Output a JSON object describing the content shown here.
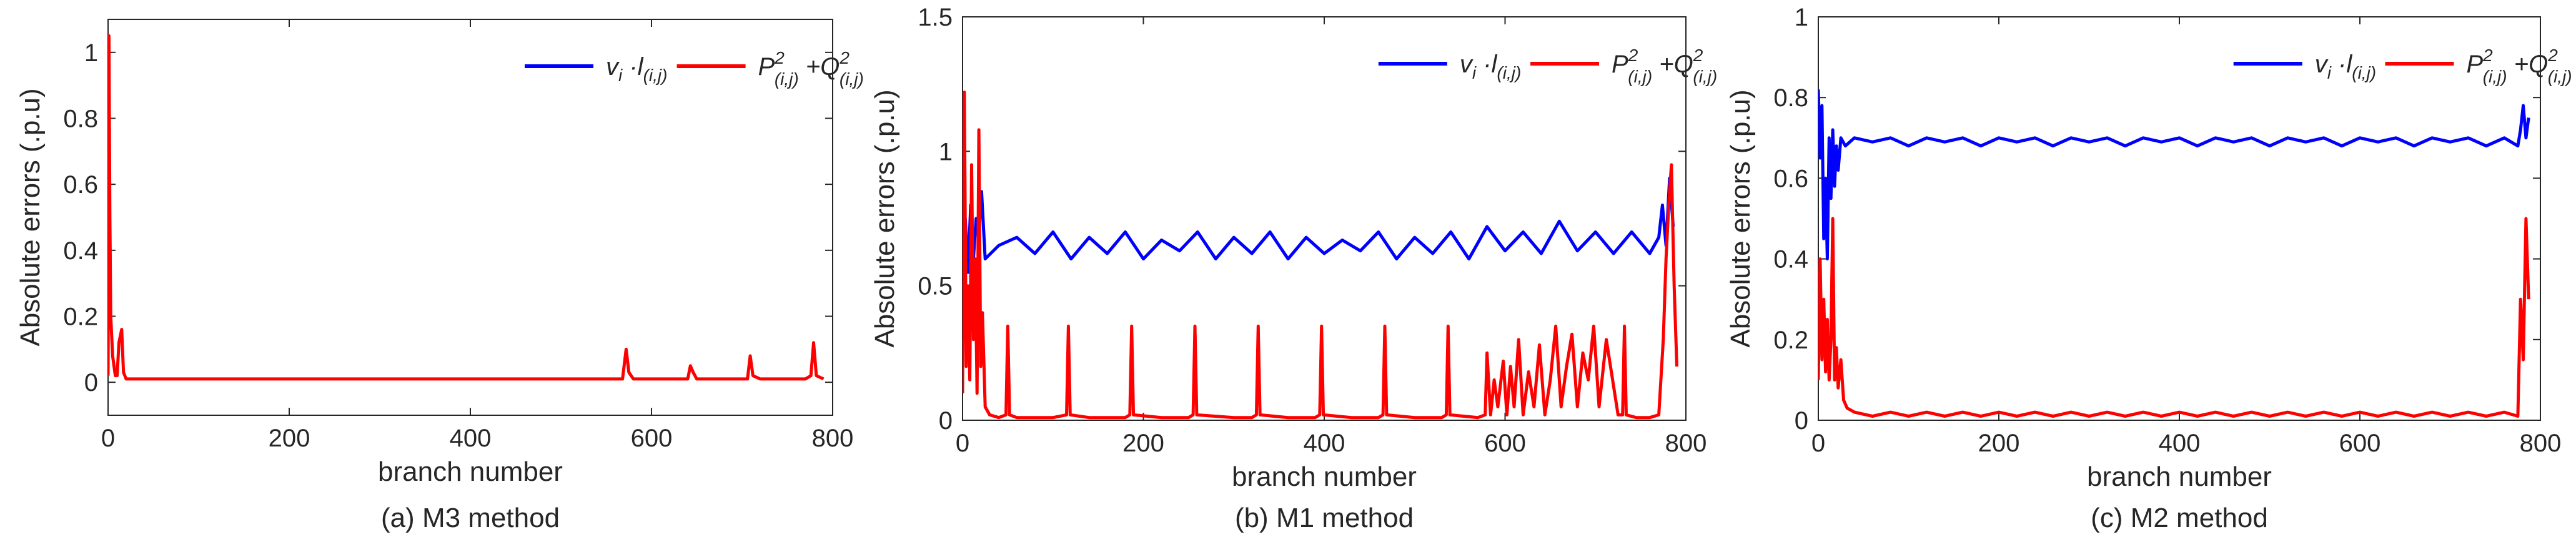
{
  "figure": {
    "panels": [
      {
        "caption": "(a) M3 method"
      },
      {
        "caption": "(b) M1 method"
      },
      {
        "caption": "(c) M2 method"
      }
    ]
  },
  "chart_data": [
    {
      "type": "line",
      "xlabel": "branch number",
      "ylabel": "Absolute errors (.p.u)",
      "xlim": [
        0,
        800
      ],
      "ylim": [
        -0.1,
        1.1
      ],
      "xticks": [
        0,
        200,
        400,
        600,
        800
      ],
      "yticks": [
        0,
        0.2,
        0.4,
        0.6,
        0.8,
        1
      ],
      "grid": false,
      "legend": "top-right",
      "series": [
        {
          "name": "v_i · l_(i,j)",
          "color": "#0000ff",
          "x": [],
          "y": []
        },
        {
          "name": "P²_(i,j) + Q²_(i,j)",
          "color": "#ff0000",
          "x": [
            0,
            1,
            2,
            3,
            5,
            8,
            10,
            12,
            15,
            17,
            20,
            40,
            80,
            120,
            160,
            200,
            240,
            280,
            320,
            360,
            400,
            440,
            480,
            520,
            560,
            568,
            572,
            575,
            580,
            600,
            620,
            640,
            643,
            646,
            650,
            680,
            700,
            706,
            709,
            712,
            720,
            760,
            770,
            776,
            779,
            782,
            790
          ],
          "y": [
            0.02,
            1.05,
            0.5,
            0.2,
            0.08,
            0.02,
            0.02,
            0.12,
            0.16,
            0.03,
            0.01,
            0.01,
            0.01,
            0.01,
            0.01,
            0.01,
            0.01,
            0.01,
            0.01,
            0.01,
            0.01,
            0.01,
            0.01,
            0.01,
            0.01,
            0.01,
            0.1,
            0.03,
            0.01,
            0.01,
            0.01,
            0.01,
            0.05,
            0.03,
            0.01,
            0.01,
            0.01,
            0.01,
            0.08,
            0.02,
            0.01,
            0.01,
            0.01,
            0.02,
            0.12,
            0.02,
            0.01
          ]
        }
      ]
    },
    {
      "type": "line",
      "xlabel": "branch number",
      "ylabel": "Absolute errors (.p.u)",
      "xlim": [
        0,
        800
      ],
      "ylim": [
        0,
        1.5
      ],
      "xticks": [
        0,
        200,
        400,
        600,
        800
      ],
      "yticks": [
        0,
        0.5,
        1,
        1.5
      ],
      "grid": false,
      "legend": "top-right",
      "series": [
        {
          "name": "v_i · l_(i,j)",
          "color": "#0000ff",
          "x": [
            0,
            3,
            6,
            9,
            12,
            15,
            18,
            21,
            25,
            40,
            60,
            80,
            100,
            120,
            140,
            160,
            180,
            200,
            220,
            240,
            260,
            280,
            300,
            320,
            340,
            360,
            380,
            400,
            420,
            440,
            460,
            480,
            500,
            520,
            540,
            560,
            580,
            600,
            620,
            640,
            660,
            680,
            700,
            720,
            740,
            760,
            770,
            774,
            778,
            782,
            786
          ],
          "y": [
            0.6,
            0.75,
            0.55,
            0.8,
            0.6,
            0.75,
            0.7,
            0.85,
            0.6,
            0.65,
            0.68,
            0.62,
            0.7,
            0.6,
            0.68,
            0.62,
            0.7,
            0.6,
            0.67,
            0.63,
            0.7,
            0.6,
            0.68,
            0.62,
            0.7,
            0.6,
            0.68,
            0.62,
            0.67,
            0.63,
            0.7,
            0.6,
            0.68,
            0.62,
            0.7,
            0.6,
            0.72,
            0.63,
            0.7,
            0.62,
            0.74,
            0.63,
            0.7,
            0.62,
            0.7,
            0.62,
            0.68,
            0.8,
            0.65,
            0.9,
            0.72
          ]
        },
        {
          "name": "P²_(i,j) + Q²_(i,j)",
          "color": "#ff0000",
          "x": [
            0,
            2,
            4,
            6,
            8,
            10,
            12,
            14,
            16,
            18,
            20,
            22,
            25,
            30,
            40,
            48,
            50,
            52,
            60,
            100,
            115,
            117,
            119,
            140,
            180,
            185,
            187,
            189,
            220,
            250,
            255,
            257,
            259,
            300,
            320,
            325,
            327,
            329,
            360,
            390,
            395,
            397,
            399,
            430,
            460,
            465,
            467,
            469,
            500,
            530,
            535,
            537,
            539,
            570,
            578,
            580,
            584,
            588,
            592,
            598,
            602,
            606,
            610,
            615,
            620,
            626,
            632,
            638,
            644,
            650,
            656,
            662,
            668,
            674,
            680,
            686,
            692,
            698,
            704,
            712,
            725,
            730,
            732,
            734,
            745,
            760,
            770,
            775,
            778,
            781,
            784,
            787,
            790
          ],
          "y": [
            0.1,
            1.22,
            0.2,
            0.5,
            0.15,
            0.95,
            0.3,
            0.6,
            0.1,
            1.08,
            0.2,
            0.4,
            0.05,
            0.02,
            0.01,
            0.02,
            0.35,
            0.02,
            0.01,
            0.01,
            0.02,
            0.35,
            0.02,
            0.01,
            0.01,
            0.02,
            0.35,
            0.02,
            0.01,
            0.01,
            0.02,
            0.35,
            0.02,
            0.01,
            0.01,
            0.02,
            0.35,
            0.02,
            0.01,
            0.01,
            0.02,
            0.35,
            0.02,
            0.01,
            0.01,
            0.02,
            0.35,
            0.02,
            0.01,
            0.01,
            0.02,
            0.35,
            0.02,
            0.01,
            0.02,
            0.25,
            0.02,
            0.15,
            0.05,
            0.22,
            0.02,
            0.2,
            0.05,
            0.3,
            0.02,
            0.18,
            0.05,
            0.28,
            0.02,
            0.15,
            0.35,
            0.05,
            0.2,
            0.32,
            0.05,
            0.25,
            0.15,
            0.35,
            0.05,
            0.3,
            0.02,
            0.02,
            0.35,
            0.02,
            0.01,
            0.01,
            0.02,
            0.3,
            0.6,
            0.8,
            0.95,
            0.5,
            0.2
          ]
        }
      ]
    },
    {
      "type": "line",
      "xlabel": "branch number",
      "ylabel": "Absolute errors (.p.u)",
      "xlim": [
        0,
        800
      ],
      "ylim": [
        0,
        1
      ],
      "xticks": [
        0,
        200,
        400,
        600,
        800
      ],
      "yticks": [
        0,
        0.2,
        0.4,
        0.6,
        0.8,
        1
      ],
      "grid": false,
      "legend": "top-right",
      "series": [
        {
          "name": "v_i · l_(i,j)",
          "color": "#0000ff",
          "x": [
            0,
            2,
            4,
            6,
            8,
            10,
            12,
            14,
            16,
            18,
            20,
            22,
            25,
            30,
            40,
            60,
            80,
            100,
            120,
            140,
            160,
            180,
            200,
            220,
            240,
            260,
            280,
            300,
            320,
            340,
            360,
            380,
            400,
            420,
            440,
            460,
            480,
            500,
            520,
            540,
            560,
            580,
            600,
            620,
            640,
            660,
            680,
            700,
            720,
            740,
            760,
            775,
            778,
            781,
            784,
            787
          ],
          "y": [
            0.82,
            0.65,
            0.78,
            0.45,
            0.6,
            0.4,
            0.7,
            0.55,
            0.72,
            0.58,
            0.68,
            0.62,
            0.7,
            0.68,
            0.7,
            0.69,
            0.7,
            0.68,
            0.7,
            0.69,
            0.7,
            0.68,
            0.7,
            0.69,
            0.7,
            0.68,
            0.7,
            0.69,
            0.7,
            0.68,
            0.7,
            0.69,
            0.7,
            0.68,
            0.7,
            0.69,
            0.7,
            0.68,
            0.7,
            0.69,
            0.7,
            0.68,
            0.7,
            0.69,
            0.7,
            0.68,
            0.7,
            0.69,
            0.7,
            0.68,
            0.7,
            0.68,
            0.72,
            0.78,
            0.7,
            0.75
          ]
        },
        {
          "name": "P²_(i,j) + Q²_(i,j)",
          "color": "#ff0000",
          "x": [
            0,
            2,
            4,
            6,
            8,
            10,
            12,
            14,
            16,
            18,
            20,
            22,
            25,
            28,
            32,
            40,
            60,
            80,
            100,
            120,
            140,
            160,
            180,
            200,
            220,
            240,
            260,
            280,
            300,
            320,
            340,
            360,
            380,
            400,
            420,
            440,
            460,
            480,
            500,
            520,
            540,
            560,
            580,
            600,
            620,
            640,
            660,
            680,
            700,
            720,
            740,
            760,
            775,
            778,
            781,
            784,
            787
          ],
          "y": [
            0.1,
            0.4,
            0.15,
            0.3,
            0.12,
            0.25,
            0.1,
            0.2,
            0.5,
            0.1,
            0.18,
            0.08,
            0.15,
            0.05,
            0.03,
            0.02,
            0.01,
            0.02,
            0.01,
            0.02,
            0.01,
            0.02,
            0.01,
            0.02,
            0.01,
            0.02,
            0.01,
            0.02,
            0.01,
            0.02,
            0.01,
            0.02,
            0.01,
            0.02,
            0.01,
            0.02,
            0.01,
            0.02,
            0.01,
            0.02,
            0.01,
            0.02,
            0.01,
            0.02,
            0.01,
            0.02,
            0.01,
            0.02,
            0.01,
            0.02,
            0.01,
            0.02,
            0.01,
            0.3,
            0.15,
            0.5,
            0.3
          ]
        }
      ]
    }
  ]
}
